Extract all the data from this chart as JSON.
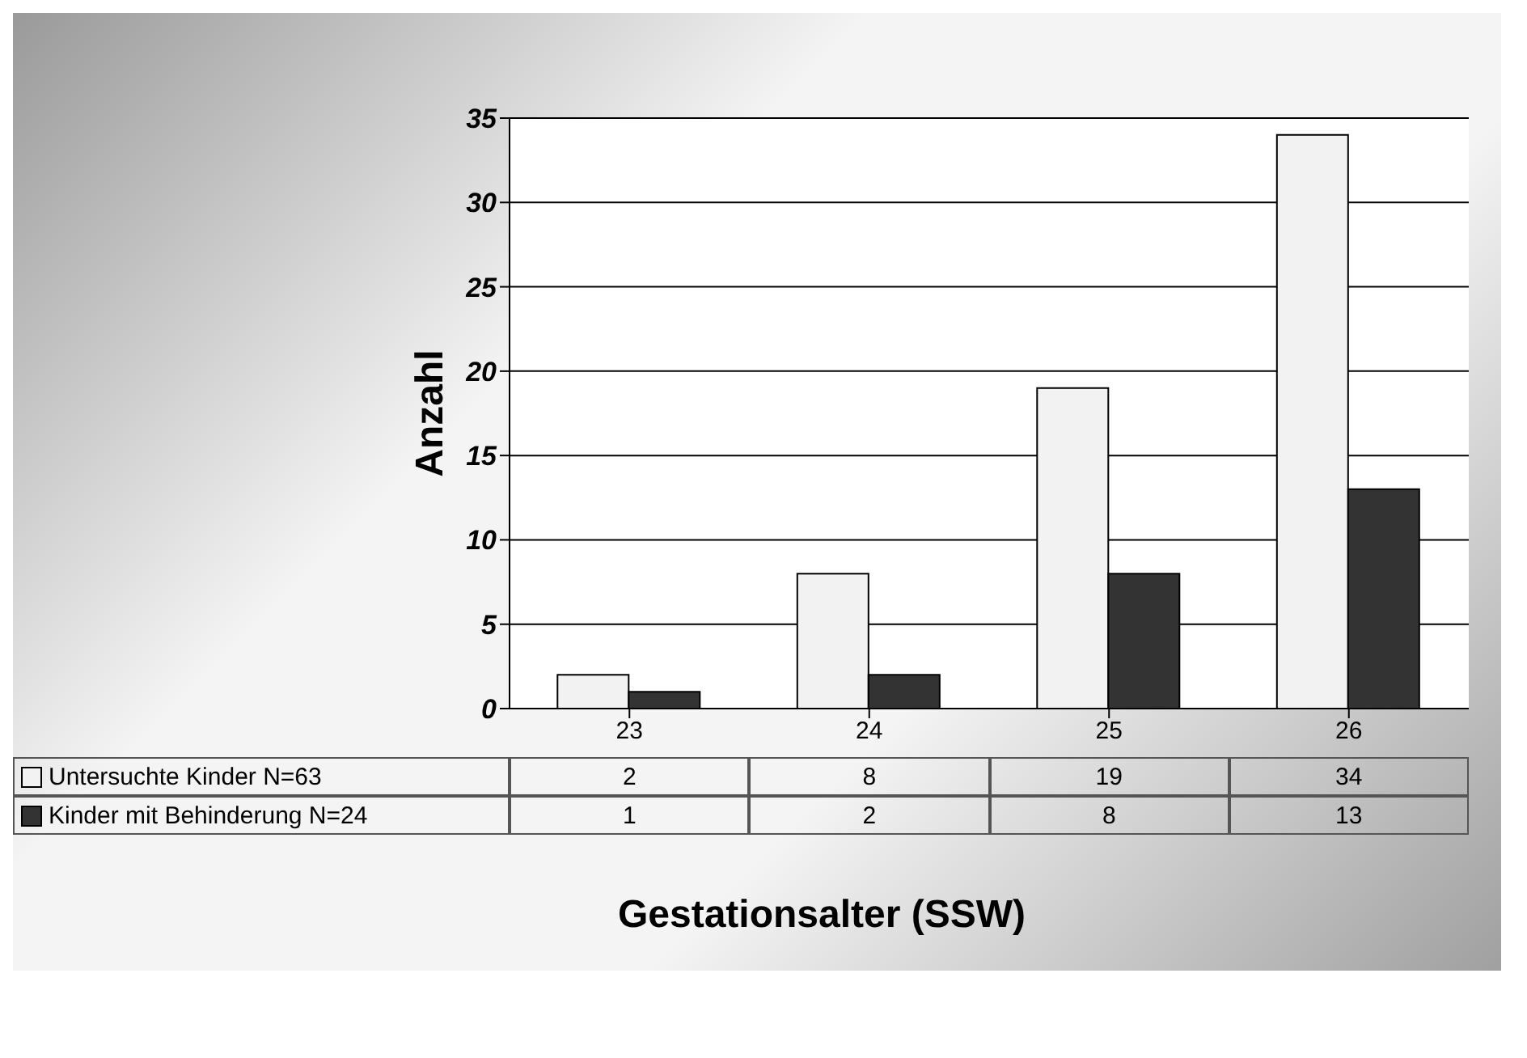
{
  "chart_data": {
    "type": "bar",
    "xlabel": "Gestationsalter (SSW)",
    "ylabel": "Anzahl",
    "categories": [
      "23",
      "24",
      "25",
      "26"
    ],
    "series": [
      {
        "name": "Untersuchte Kinder N=63",
        "color": "#f2f2f2",
        "values": [
          2,
          8,
          19,
          34
        ]
      },
      {
        "name": "Kinder mit Behinderung N=24",
        "color": "#333333",
        "values": [
          1,
          2,
          8,
          13
        ]
      }
    ],
    "ylim": [
      0,
      35
    ],
    "yticks": [
      0,
      5,
      10,
      15,
      20,
      25,
      30,
      35
    ],
    "grid": "y",
    "legend": "bottom",
    "data_labels": true
  }
}
